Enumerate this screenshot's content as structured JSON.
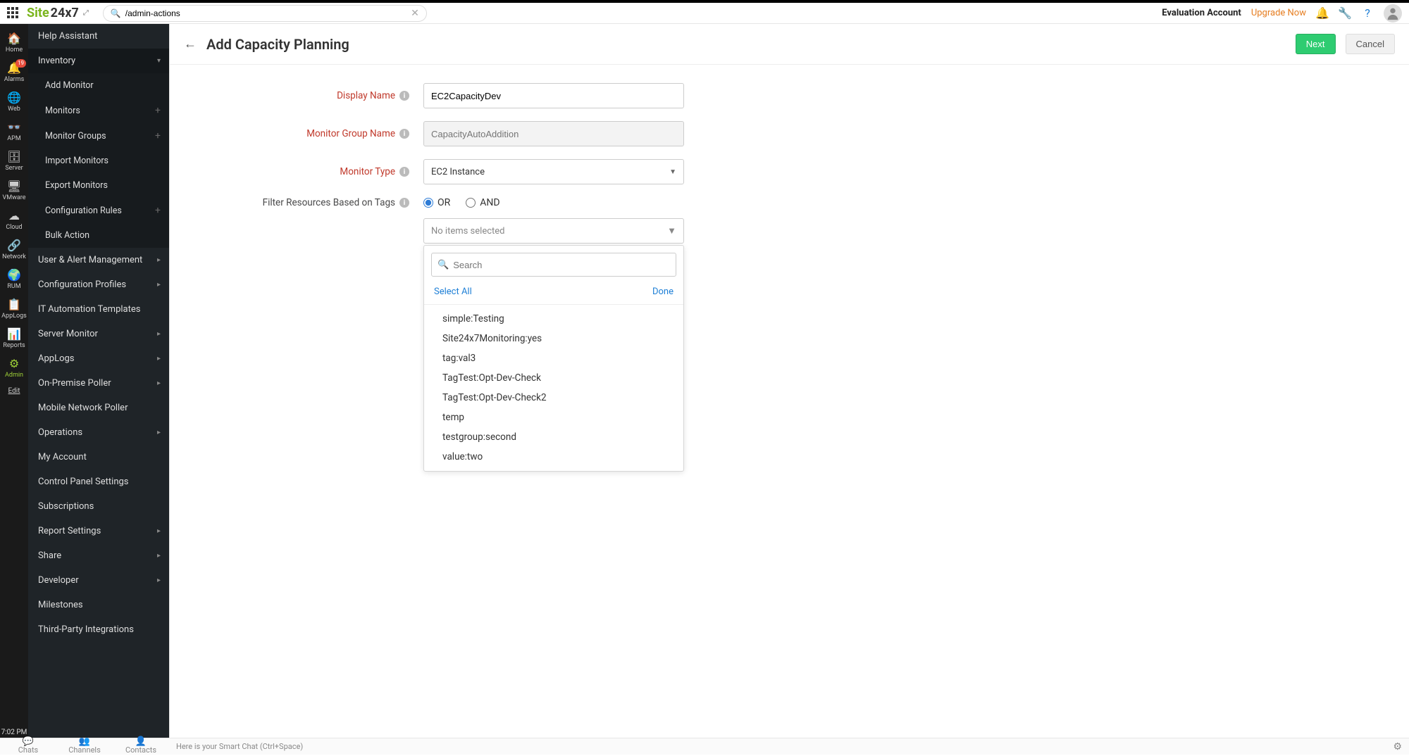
{
  "header": {
    "search_value": "/admin-actions",
    "eval_label": "Evaluation Account",
    "upgrade_label": "Upgrade Now"
  },
  "rail": {
    "items": [
      {
        "label": "Home"
      },
      {
        "label": "Alarms",
        "badge": "19"
      },
      {
        "label": "Web"
      },
      {
        "label": "APM"
      },
      {
        "label": "Server"
      },
      {
        "label": "VMware"
      },
      {
        "label": "Cloud"
      },
      {
        "label": "Network"
      },
      {
        "label": "RUM"
      },
      {
        "label": "AppLogs"
      },
      {
        "label": "Reports"
      },
      {
        "label": "Admin"
      }
    ],
    "edit": "Edit",
    "clock": "7:02 PM"
  },
  "sidemenu": {
    "help": "Help Assistant",
    "inventory": "Inventory",
    "inv_sub": [
      "Add Monitor",
      "Monitors",
      "Monitor Groups",
      "Import Monitors",
      "Export Monitors",
      "Configuration Rules",
      "Bulk Action"
    ],
    "rest": [
      "User & Alert Management",
      "Configuration Profiles",
      "IT Automation Templates",
      "Server Monitor",
      "AppLogs",
      "On-Premise Poller",
      "Mobile Network Poller",
      "Operations",
      "My Account",
      "Control Panel Settings",
      "Subscriptions",
      "Report Settings",
      "Share",
      "Developer",
      "Milestones",
      "Third-Party Integrations"
    ],
    "arrows": [
      true,
      true,
      false,
      true,
      true,
      true,
      false,
      true,
      false,
      false,
      false,
      true,
      true,
      true,
      false,
      false
    ]
  },
  "page": {
    "title": "Add Capacity Planning",
    "next": "Next",
    "cancel": "Cancel"
  },
  "form": {
    "display_name_label": "Display Name",
    "display_name_value": "EC2CapacityDev",
    "group_label": "Monitor Group Name",
    "group_placeholder": "CapacityAutoAddition",
    "monitor_type_label": "Monitor Type",
    "monitor_type_value": "EC2 Instance",
    "filter_label": "Filter Resources Based on Tags",
    "or_label": "OR",
    "and_label": "AND",
    "dd_placeholder": "No items selected",
    "search_placeholder": "Search",
    "select_all": "Select All",
    "done": "Done",
    "dd_items": [
      "simple:Testing",
      "Site24x7Monitoring:yes",
      "tag:val3",
      "TagTest:Opt-Dev-Check",
      "TagTest:Opt-Dev-Check2",
      "temp",
      "testgroup:second",
      "value:two"
    ]
  },
  "footer": {
    "tabs": [
      "Chats",
      "Channels",
      "Contacts"
    ],
    "hint": "Here is your Smart Chat (Ctrl+Space)"
  }
}
